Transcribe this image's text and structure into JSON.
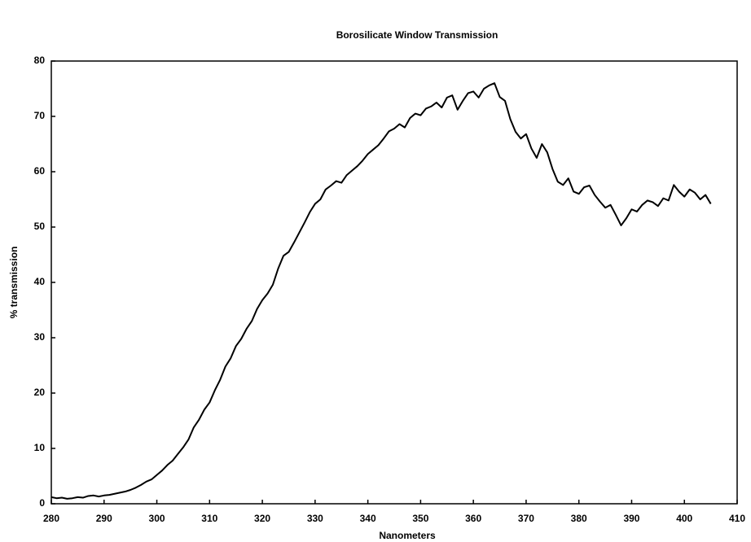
{
  "chart_data": {
    "type": "line",
    "title": "Borosilicate Window Transmission",
    "xlabel": "Nanometers",
    "ylabel": "% transmission",
    "x": [
      280,
      281,
      282,
      283,
      284,
      285,
      286,
      287,
      288,
      289,
      290,
      291,
      292,
      293,
      294,
      295,
      296,
      297,
      298,
      299,
      300,
      301,
      302,
      303,
      304,
      305,
      306,
      307,
      308,
      309,
      310,
      311,
      312,
      313,
      314,
      315,
      316,
      317,
      318,
      319,
      320,
      321,
      322,
      323,
      324,
      325,
      326,
      327,
      328,
      329,
      330,
      331,
      332,
      333,
      334,
      335,
      336,
      337,
      338,
      339,
      340,
      341,
      342,
      343,
      344,
      345,
      346,
      347,
      348,
      349,
      350,
      351,
      352,
      353,
      354,
      355,
      356,
      357,
      358,
      359,
      360,
      361,
      362,
      363,
      364,
      365,
      366,
      367,
      368,
      369,
      370,
      371,
      372,
      373,
      374,
      375,
      376,
      377,
      378,
      379,
      380,
      381,
      382,
      383,
      384,
      385,
      386,
      387,
      388,
      389,
      390,
      391,
      392,
      393,
      394,
      395,
      396,
      397,
      398,
      399,
      400,
      401,
      402,
      403,
      404,
      405
    ],
    "series": [
      {
        "name": "transmission",
        "color": "#000000",
        "values": [
          1.2,
          1.0,
          1.1,
          0.9,
          1.0,
          1.2,
          1.1,
          1.4,
          1.5,
          1.3,
          1.5,
          1.6,
          1.8,
          2.0,
          2.2,
          2.5,
          2.9,
          3.4,
          4.0,
          4.4,
          5.2,
          6.0,
          7.0,
          7.8,
          9.0,
          10.2,
          11.6,
          13.8,
          15.2,
          17.0,
          18.3,
          20.5,
          22.4,
          24.8,
          26.3,
          28.5,
          29.8,
          31.6,
          33.0,
          35.2,
          36.8,
          38.0,
          39.6,
          42.5,
          44.8,
          45.5,
          47.2,
          49.0,
          50.8,
          52.7,
          54.2,
          55.0,
          56.8,
          57.5,
          58.3,
          58.0,
          59.4,
          60.2,
          61.0,
          62.0,
          63.2,
          64.0,
          64.8,
          66.0,
          67.3,
          67.8,
          68.6,
          68.0,
          69.7,
          70.5,
          70.2,
          71.4,
          71.8,
          72.5,
          71.6,
          73.4,
          73.8,
          71.2,
          72.8,
          74.2,
          74.5,
          73.4,
          75.0,
          75.6,
          76.0,
          73.5,
          72.8,
          69.5,
          67.2,
          66.0,
          66.8,
          64.2,
          62.5,
          65.0,
          63.5,
          60.5,
          58.2,
          57.6,
          58.8,
          56.4,
          56.0,
          57.2,
          57.5,
          55.8,
          54.6,
          53.5,
          54.0,
          52.2,
          50.3,
          51.6,
          53.2,
          52.8,
          54.0,
          54.8,
          54.5,
          53.8,
          55.2,
          54.8,
          57.6,
          56.4,
          55.5,
          56.8,
          56.2,
          55.0,
          55.8,
          54.2
        ]
      }
    ],
    "xlim": [
      280,
      410
    ],
    "xticks": [
      280,
      290,
      300,
      310,
      320,
      330,
      340,
      350,
      360,
      370,
      380,
      390,
      400,
      410
    ],
    "ylim": [
      0,
      80
    ],
    "yticks": [
      0,
      10,
      20,
      30,
      40,
      50,
      60,
      70,
      80
    ],
    "grid": false
  }
}
